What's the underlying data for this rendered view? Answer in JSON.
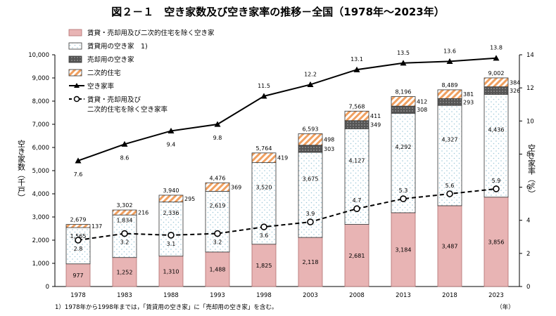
{
  "colors": {
    "pink": "#e8b4b4",
    "pink_stroke": "#b06e6e",
    "rental_fill": "#ffffff",
    "rental_dot": "#9ec8d8",
    "sale": "#555555",
    "second_stripe": "#f0a060",
    "line": "#000000"
  },
  "chart_data": {
    "type": "bar",
    "title": "図２－１　空き家数及び空き家率の推移－全国（1978年～2023年）",
    "categories": [
      "1978",
      "1983",
      "1988",
      "1993",
      "1998",
      "2003",
      "2008",
      "2013",
      "2018",
      "2023"
    ],
    "x_unit": "（年）",
    "ylabel_left": "空き家数（千戸）",
    "ylabel_right": "空き家率（%）",
    "ylim_left": [
      0,
      10000
    ],
    "yticks_left": [
      "0",
      "1,000",
      "2,000",
      "3,000",
      "4,000",
      "5,000",
      "6,000",
      "7,000",
      "8,000",
      "9,000",
      "10,000"
    ],
    "ylim_right": [
      0,
      14
    ],
    "yticks_right": [
      "0",
      "2",
      "4",
      "6",
      "8",
      "10",
      "12",
      "14"
    ],
    "legend": [
      {
        "key": "other",
        "label": "賃貸・売却用及び二次的住宅を除く空き家"
      },
      {
        "key": "rental",
        "label": "賃貸用の空き家　1)"
      },
      {
        "key": "sale",
        "label": "売却用の空き家"
      },
      {
        "key": "second",
        "label": "二次的住宅"
      },
      {
        "key": "rate",
        "label": "空き家率"
      },
      {
        "key": "other_rate",
        "label": "賃貸・売却用及び"
      },
      {
        "key": "other_rate2",
        "label": "二次的住宅を除く空き家率"
      }
    ],
    "series": [
      {
        "name": "賃貸・売却用及び二次的住宅を除く空き家",
        "values": [
          977,
          1252,
          1310,
          1488,
          1825,
          2118,
          2681,
          3184,
          3487,
          3856
        ],
        "labels": [
          "977",
          "1,252",
          "1,310",
          "1,488",
          "1,825",
          "2,118",
          "2,681",
          "3,184",
          "3,487",
          "3,856"
        ]
      },
      {
        "name": "賃貸用の空き家　1)",
        "values": [
          1565,
          1834,
          2336,
          2619,
          3520,
          3675,
          4127,
          4292,
          4327,
          4436
        ],
        "labels": [
          "1,565",
          "1,834",
          "2,336",
          "2,619",
          "3,520",
          "3,675",
          "4,127",
          "4,292",
          "4,327",
          "4,436"
        ]
      },
      {
        "name": "売却用の空き家",
        "values": [
          0,
          0,
          0,
          0,
          0,
          303,
          349,
          308,
          293,
          326
        ],
        "labels": [
          "",
          "",
          "",
          "",
          "",
          "303",
          "349",
          "308",
          "293",
          "326"
        ]
      },
      {
        "name": "二次的住宅",
        "values": [
          137,
          216,
          295,
          369,
          419,
          498,
          411,
          412,
          381,
          384
        ],
        "labels": [
          "137",
          "216",
          "295",
          "369",
          "419",
          "498",
          "411",
          "412",
          "381",
          "384"
        ]
      }
    ],
    "totals": [
      2679,
      3302,
      3940,
      4476,
      5764,
      6593,
      7568,
      8196,
      8489,
      9002
    ],
    "total_labels": [
      "2,679",
      "3,302",
      "3,940",
      "4,476",
      "5,764",
      "6,593",
      "7,568",
      "8,196",
      "8,489",
      "9,002"
    ],
    "rate": {
      "name": "空き家率",
      "values": [
        7.6,
        8.6,
        9.4,
        9.8,
        11.5,
        12.2,
        13.1,
        13.5,
        13.6,
        13.8
      ],
      "labels": [
        "7.6",
        "8.6",
        "9.4",
        "9.8",
        "11.5",
        "12.2",
        "13.1",
        "13.5",
        "13.6",
        "13.8"
      ]
    },
    "other_rate": {
      "name": "賃貸・売却用及び二次的住宅を除く空き家率",
      "values": [
        2.8,
        3.2,
        3.1,
        3.2,
        3.6,
        3.9,
        4.7,
        5.3,
        5.6,
        5.9
      ],
      "labels": [
        "2.8",
        "3.2",
        "3.1",
        "3.2",
        "3.6",
        "3.9",
        "4.7",
        "5.3",
        "5.6",
        "5.9"
      ]
    },
    "footnote": "1）1978年から1998年までは，「賃貸用の空き家」に「売却用の空き家」を含む。"
  }
}
